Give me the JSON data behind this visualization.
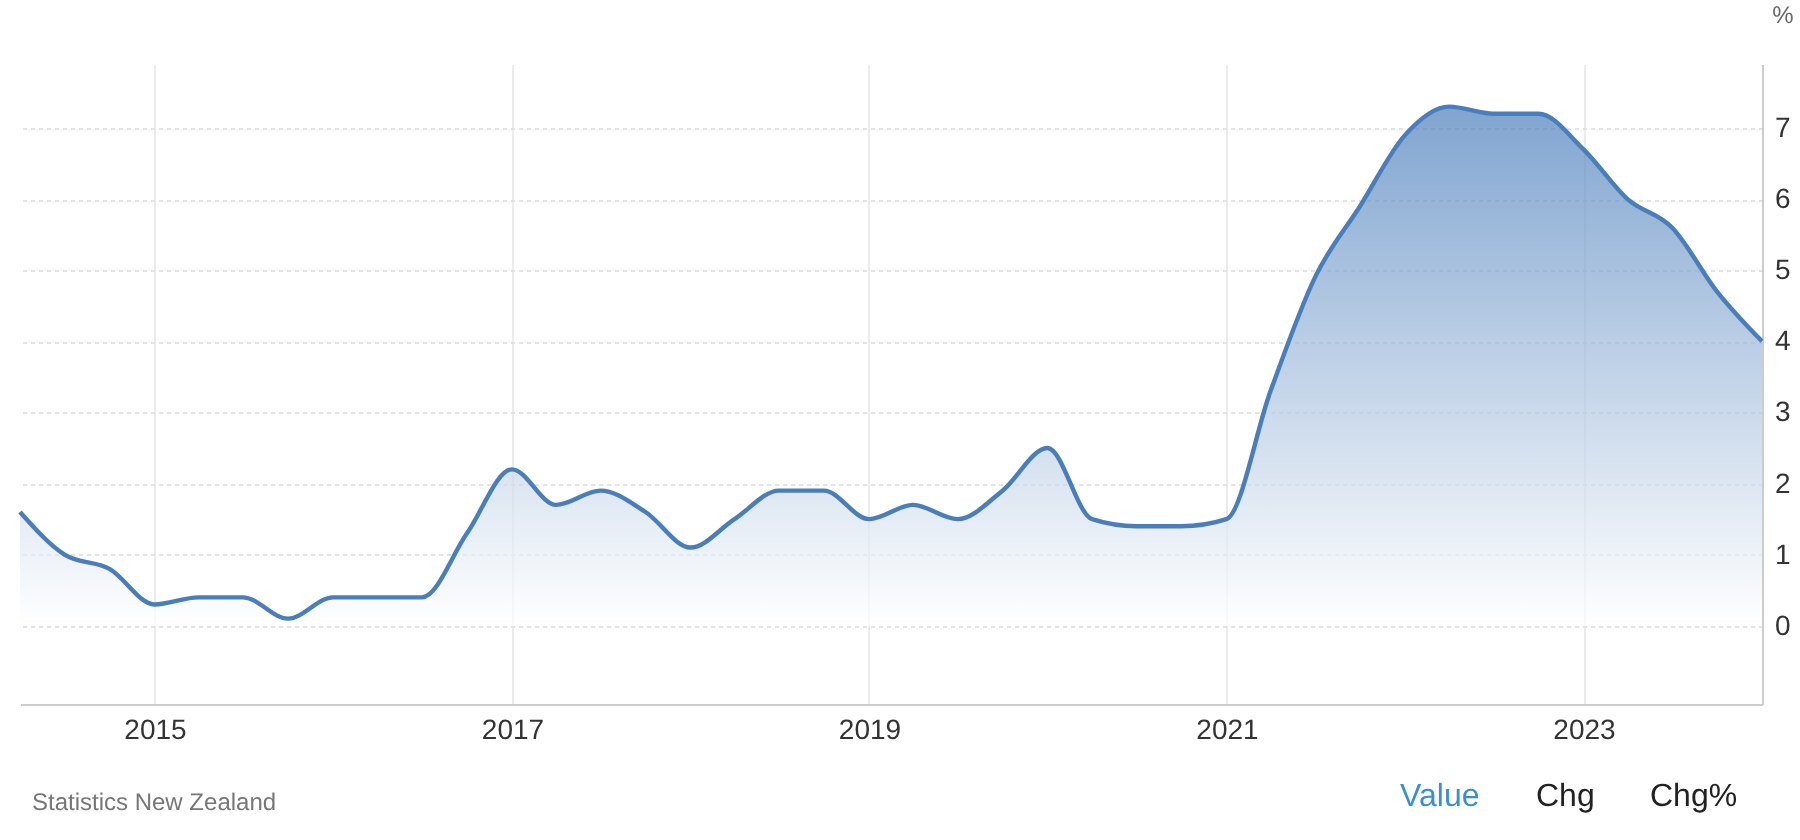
{
  "chart_data": {
    "type": "area",
    "ylabel": "%",
    "x": [
      "2014-04-01",
      "2014-07-01",
      "2014-10-01",
      "2015-01-01",
      "2015-04-01",
      "2015-07-01",
      "2015-10-01",
      "2016-01-01",
      "2016-04-01",
      "2016-07-01",
      "2016-10-01",
      "2017-01-01",
      "2017-04-01",
      "2017-07-01",
      "2017-10-01",
      "2018-01-01",
      "2018-04-01",
      "2018-07-01",
      "2018-10-01",
      "2019-01-01",
      "2019-04-01",
      "2019-07-01",
      "2019-10-01",
      "2020-01-01",
      "2020-04-01",
      "2020-07-01",
      "2020-10-01",
      "2021-01-01",
      "2021-04-01",
      "2021-07-01",
      "2021-10-01",
      "2022-01-01",
      "2022-04-01",
      "2022-07-01",
      "2022-10-01",
      "2023-01-01",
      "2023-04-01",
      "2023-07-01",
      "2023-10-01",
      "2024-01-01"
    ],
    "series": [
      {
        "color": "#4a7ebb",
        "values": [
          1.6,
          1.0,
          0.8,
          0.3,
          0.4,
          0.4,
          0.1,
          0.4,
          0.4,
          0.4,
          1.3,
          2.2,
          1.7,
          1.9,
          1.6,
          1.1,
          1.5,
          1.9,
          1.9,
          1.5,
          1.7,
          1.5,
          1.9,
          2.5,
          1.5,
          1.4,
          1.4,
          1.5,
          3.3,
          4.9,
          5.9,
          6.9,
          7.3,
          7.2,
          7.2,
          6.7,
          6.0,
          5.6,
          4.7,
          4.0
        ]
      }
    ],
    "xlim": [
      "2014-04-01",
      "2024-01-01"
    ],
    "xticks": [
      "2015",
      "2017",
      "2019",
      "2021",
      "2023"
    ],
    "ylim": [
      -1.1,
      7.9
    ],
    "yticks": [
      0,
      1,
      2,
      3,
      4,
      5,
      6,
      7
    ],
    "grid": true,
    "annotations": [
      "Statistics New Zealand",
      "Value",
      "Chg",
      "Chg%"
    ]
  }
}
